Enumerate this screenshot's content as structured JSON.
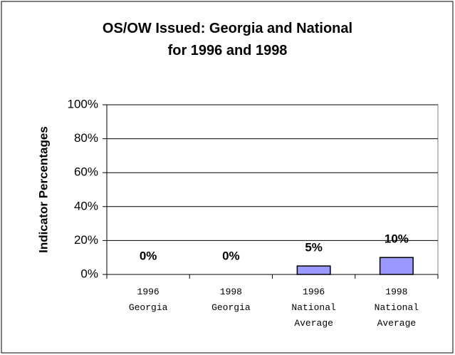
{
  "chart_data": {
    "type": "bar",
    "title": "OS/OW Issued: Georgia and National\nfor 1996 and 1998",
    "y_label": "Indicator Percentages",
    "categories": [
      "1996\nGeorgia",
      "1998\nGeorgia",
      "1996\nNational\nAverage",
      "1998\nNational\nAverage"
    ],
    "values": [
      0,
      0,
      5,
      10
    ],
    "value_labels": [
      "0%",
      "0%",
      "5%",
      "10%"
    ],
    "color": "#9999ff",
    "ylim": [
      0,
      100
    ],
    "yticks": [
      {
        "value": 0,
        "label": "0%"
      },
      {
        "value": 20,
        "label": "20%"
      },
      {
        "value": 40,
        "label": "40%"
      },
      {
        "value": 60,
        "label": "60%"
      },
      {
        "value": 80,
        "label": "80%"
      },
      {
        "value": 100,
        "label": "100%"
      }
    ],
    "grid": true
  }
}
